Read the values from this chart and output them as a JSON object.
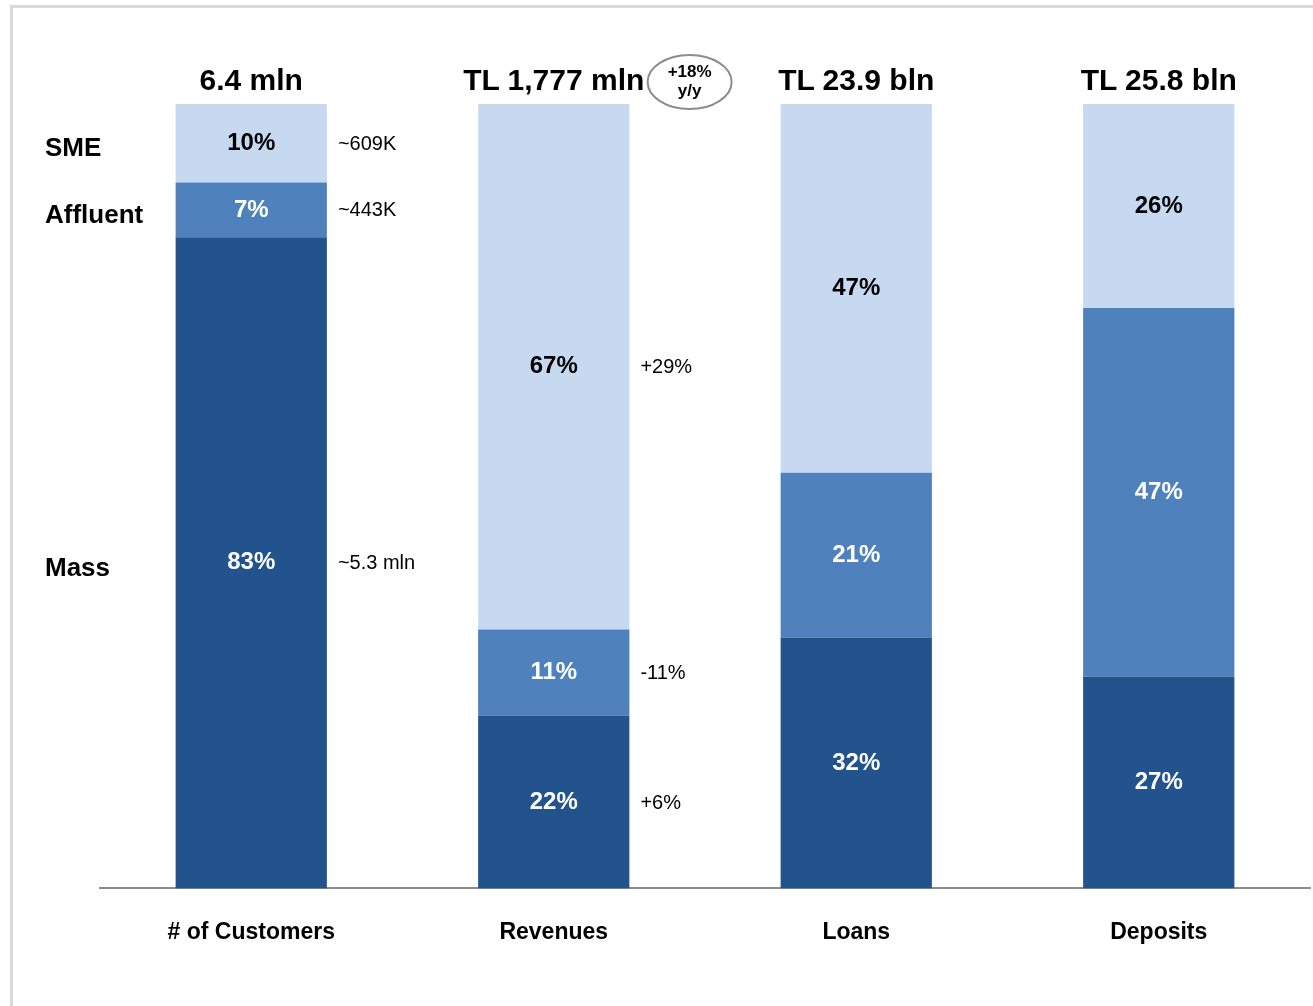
{
  "chart_data": {
    "type": "bar",
    "stacked": true,
    "categories": [
      "# of Customers",
      "Revenues",
      "Loans",
      "Deposits"
    ],
    "series": [
      {
        "name": "Mass",
        "color": "#22538c",
        "values": [
          83,
          22,
          32,
          27
        ],
        "value_labels": [
          "83%",
          "22%",
          "32%",
          "27%"
        ]
      },
      {
        "name": "Affluent",
        "color": "#4f81bd",
        "values": [
          7,
          11,
          21,
          47
        ],
        "value_labels": [
          "7%",
          "11%",
          "21%",
          "47%"
        ]
      },
      {
        "name": "SME",
        "color": "#c6d9f0",
        "values": [
          10,
          67,
          47,
          26
        ],
        "value_labels": [
          "10%",
          "67%",
          "47%",
          "26%"
        ]
      }
    ],
    "annotations": [
      "6.4 mln",
      "TL 1,777 mln",
      "TL 23.9 bln",
      "TL 25.8 bln",
      "~609K",
      "~443K",
      "~5.3 mln",
      "+29%",
      "-11%",
      "+6%",
      "+18% y/y"
    ],
    "tick_labels": "x",
    "grid": false,
    "legend": false
  }
}
